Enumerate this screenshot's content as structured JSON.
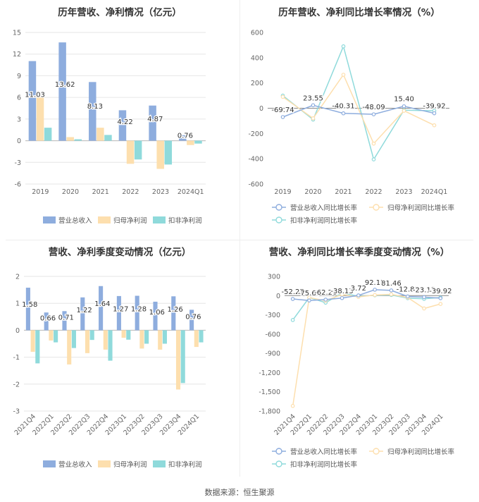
{
  "source": "数据来源：恒生聚源",
  "chart_data": [
    {
      "type": "bar",
      "title": "历年营收、净利情况（亿元）",
      "categories": [
        "2019",
        "2020",
        "2021",
        "2022",
        "2023",
        "2024Q1"
      ],
      "ylim": [
        -6,
        15
      ],
      "yticks": [
        -6,
        -3,
        0,
        3,
        6,
        9,
        12,
        15
      ],
      "grid": true,
      "legend_position": "bottom",
      "series": [
        {
          "name": "营业总收入",
          "color": "#8eadde",
          "values": [
            11.03,
            13.62,
            8.13,
            4.22,
            4.87,
            0.76
          ],
          "labels": [
            "11.03",
            "13.62",
            "8.13",
            "4.22",
            "4.87",
            "0.76"
          ]
        },
        {
          "name": "归母净利润",
          "color": "#fddfae",
          "values": [
            6.0,
            0.5,
            1.8,
            -3.2,
            -3.9,
            -0.6
          ]
        },
        {
          "name": "扣非净利润",
          "color": "#8fdadb",
          "values": [
            1.8,
            0.2,
            0.8,
            -2.6,
            -3.3,
            -0.4
          ]
        }
      ]
    },
    {
      "type": "line",
      "title": "历年营收、净利同比增长率情况（%）",
      "categories": [
        "2019",
        "2020",
        "2021",
        "2022",
        "2023",
        "2024Q1"
      ],
      "ylim": [
        -600,
        600
      ],
      "yticks": [
        -600,
        -400,
        -200,
        0,
        200,
        400,
        600
      ],
      "grid": false,
      "legend_position": "bottom",
      "series": [
        {
          "name": "营业总收入同比增长率",
          "color": "#8eadde",
          "values": [
            -69.74,
            23.55,
            -40.31,
            -48.09,
            15.4,
            -39.92
          ],
          "labels": [
            "-69.74",
            "23.55",
            "-40.31",
            "-48.09",
            "15.40",
            "-39.92"
          ]
        },
        {
          "name": "归母净利润同比增长率",
          "color": "#fddfae",
          "values": [
            90,
            -80,
            265,
            -280,
            -20,
            -135
          ]
        },
        {
          "name": "扣非净利润同比增长率",
          "color": "#8fdadb",
          "values": [
            100,
            -90,
            490,
            -405,
            -15,
            -20
          ]
        }
      ]
    },
    {
      "type": "bar",
      "title": "营收、净利季度变动情况（亿元）",
      "categories": [
        "2021Q4",
        "2022Q1",
        "2022Q2",
        "2022Q3",
        "2022Q4",
        "2023Q1",
        "2023Q2",
        "2023Q3",
        "2023Q4",
        "2024Q1"
      ],
      "ylim": [
        -3,
        2
      ],
      "yticks": [
        -3,
        -2,
        -1,
        0,
        1,
        2
      ],
      "grid": true,
      "legend_position": "bottom",
      "series": [
        {
          "name": "营业总收入",
          "color": "#8eadde",
          "values": [
            1.58,
            0.66,
            0.71,
            1.22,
            1.64,
            1.27,
            1.28,
            1.06,
            1.26,
            0.76
          ],
          "labels": [
            "1.58",
            "0.66",
            "0.71",
            "1.22",
            "1.64",
            "1.27",
            "1.28",
            "1.06",
            "1.26",
            "0.76"
          ]
        },
        {
          "name": "归母净利润",
          "color": "#fddfae",
          "values": [
            -0.8,
            -0.38,
            -1.27,
            -0.85,
            -0.72,
            -0.28,
            -0.68,
            -0.72,
            -2.2,
            -0.62
          ]
        },
        {
          "name": "扣非净利润",
          "color": "#8fdadb",
          "values": [
            -1.23,
            -0.45,
            -0.66,
            -0.36,
            -1.13,
            -0.35,
            -0.5,
            -0.5,
            -1.96,
            -0.45
          ]
        }
      ]
    },
    {
      "type": "line",
      "title": "营收、净利同比增长率季度变动情况（%）",
      "categories": [
        "2021Q4",
        "2022Q1",
        "2022Q2",
        "2022Q3",
        "2022Q4",
        "2023Q1",
        "2023Q2",
        "2023Q3",
        "2023Q4",
        "2024Q1"
      ],
      "ylim": [
        -1800,
        300
      ],
      "yticks": [
        -1800,
        -1500,
        -1200,
        -900,
        -600,
        -300,
        0,
        300
      ],
      "grid": false,
      "legend_position": "bottom",
      "series": [
        {
          "name": "营业总收入同比增长率",
          "color": "#8eadde",
          "values": [
            -52.27,
            -75.67,
            -62.26,
            -38.13,
            3.72,
            92.17,
            81.46,
            -12.83,
            -23.15,
            -39.92
          ],
          "labels": [
            "-52.27",
            "-75.67",
            "-62.26",
            "-38.13",
            "3.72",
            "92.17",
            "81.46",
            "-12.83",
            "-23.15",
            "-39.92"
          ]
        },
        {
          "name": "归母净利润同比增长率",
          "color": "#fddfae",
          "values": [
            -1720,
            -30,
            -80,
            20,
            -20,
            10,
            20,
            -30,
            -200,
            -130
          ]
        },
        {
          "name": "扣非净利润同比增长率",
          "color": "#8fdadb",
          "values": [
            -380,
            -30,
            -110,
            40,
            -10,
            5,
            10,
            -40,
            -50,
            -30
          ]
        }
      ]
    }
  ]
}
